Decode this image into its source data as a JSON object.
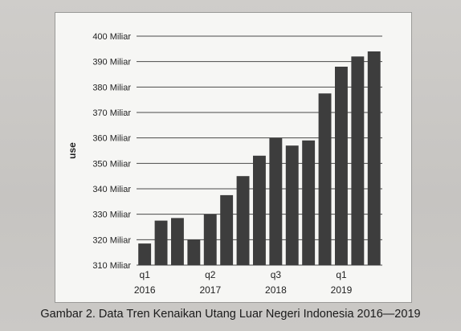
{
  "caption": "Gambar 2. Data Tren Kenaikan Utang Luar Negeri Indonesia 2016—2019",
  "chart_data": {
    "type": "bar",
    "ylabel": "use",
    "xlabel": "",
    "ylim": [
      310,
      400
    ],
    "yticks": [
      310,
      320,
      330,
      340,
      350,
      360,
      370,
      380,
      390,
      400
    ],
    "ytick_labels": [
      "310 Miliar",
      "320 Miliar",
      "330 Miliar",
      "340 Miliar",
      "350 Miliar",
      "360 Miliar",
      "370 Miliar",
      "380 Miliar",
      "390 Miliar",
      "400 Miliar"
    ],
    "grid": true,
    "bar_color": "#3d3d3d",
    "values": [
      318.5,
      327.5,
      328.5,
      320,
      330,
      337.5,
      345,
      353,
      360,
      357,
      359,
      377.5,
      388,
      392,
      394
    ],
    "x_ticks": [
      {
        "index": 0,
        "quarter": "q1",
        "year": "2016"
      },
      {
        "index": 4,
        "quarter": "q2",
        "year": "2017"
      },
      {
        "index": 8,
        "quarter": "q3",
        "year": "2018"
      },
      {
        "index": 12,
        "quarter": "q1",
        "year": "2019"
      }
    ]
  }
}
